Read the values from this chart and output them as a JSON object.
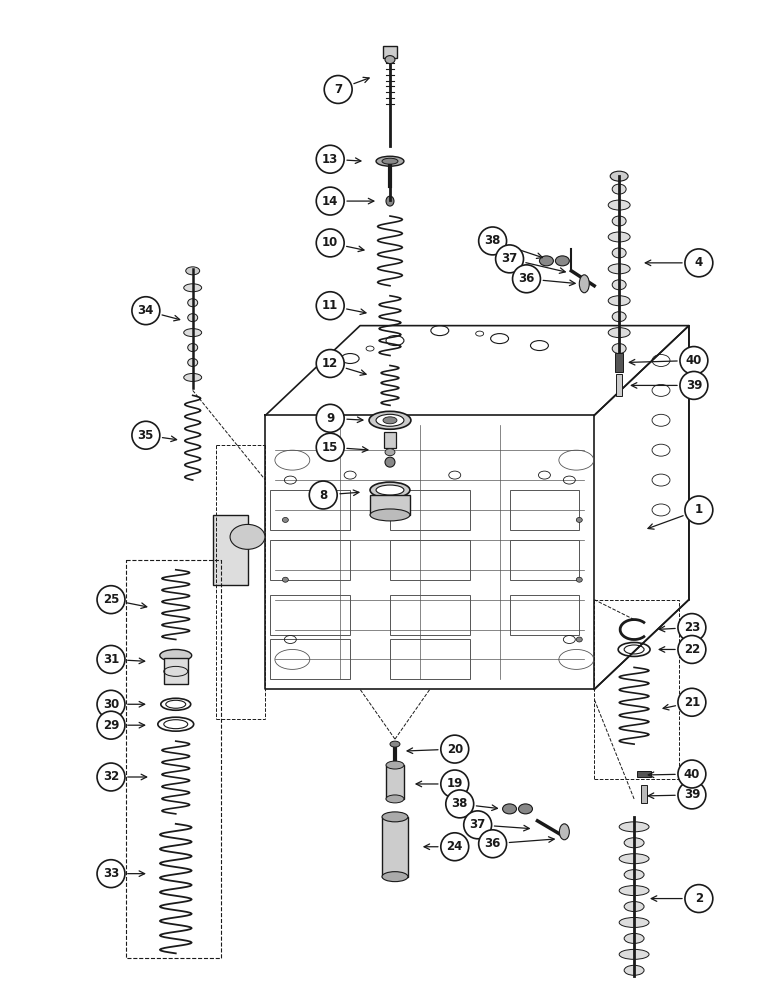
{
  "background_color": "#ffffff",
  "fig_width": 7.72,
  "fig_height": 10.0,
  "dpi": 100,
  "black": "#1a1a1a",
  "gray": "#888888",
  "lightgray": "#cccccc"
}
